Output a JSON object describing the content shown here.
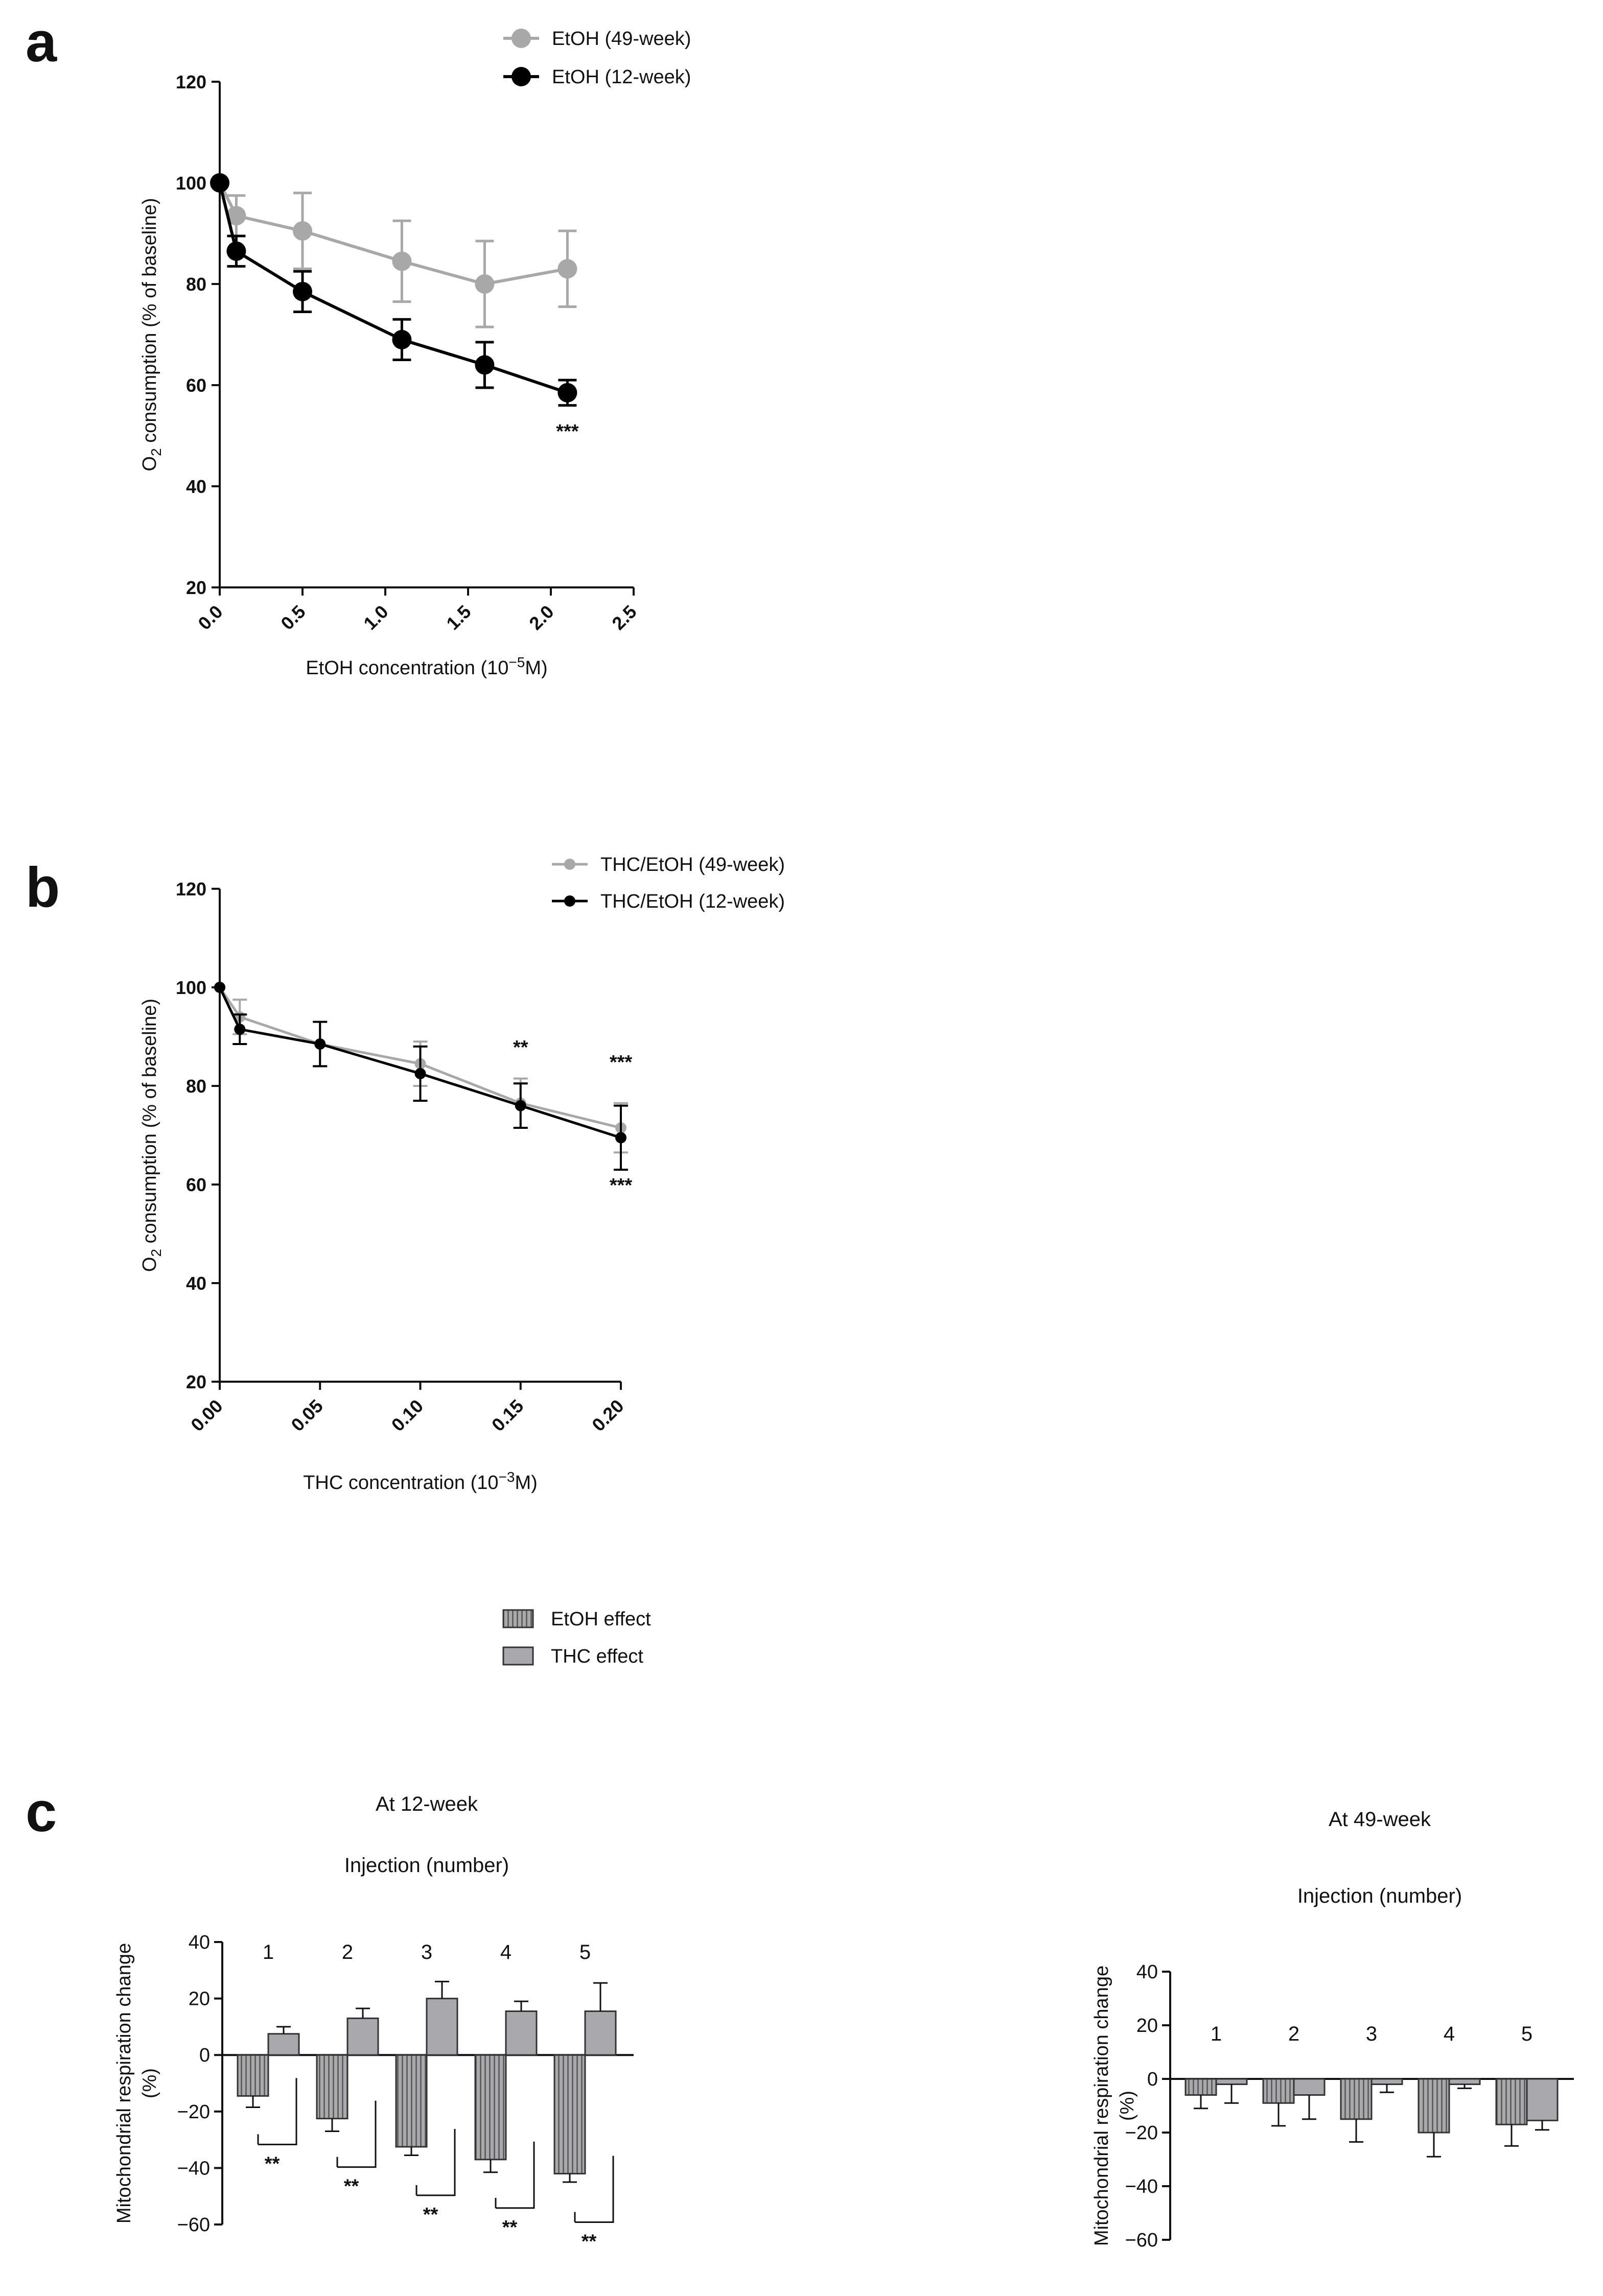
{
  "panels": {
    "a": "a",
    "b": "b",
    "c": "c"
  },
  "colors": {
    "grey": "#a8a8a8",
    "black": "#000000",
    "bar": "#a9a9ad",
    "bar_edge": "#333333"
  },
  "chart_data": [
    {
      "id": "a",
      "type": "line",
      "xlabel_prefix": "EtOH concentration (10",
      "xlabel_exp": "−5",
      "xlabel_suffix": "M)",
      "ylabel_prefix": "O",
      "ylabel_sub": "2",
      "ylabel_suffix": " consumption (% of baseline)",
      "xlim": [
        0,
        2.5
      ],
      "ylim": [
        20,
        120
      ],
      "xticks": [
        "0.0",
        "0.5",
        "1.0",
        "1.5",
        "2.0",
        "2.5"
      ],
      "xtick_values": [
        0,
        0.5,
        1.0,
        1.5,
        2.0,
        2.5
      ],
      "yticks": [
        "20",
        "40",
        "60",
        "80",
        "100",
        "120"
      ],
      "ytick_values": [
        20,
        40,
        60,
        80,
        100,
        120
      ],
      "series": [
        {
          "name": "EtOH (49-week)",
          "color": "#a8a8a8",
          "x": [
            0,
            0.1,
            0.5,
            1.1,
            1.6,
            2.1
          ],
          "y": [
            100,
            93.5,
            90.5,
            84.5,
            80,
            83
          ],
          "err": [
            0,
            4,
            7.5,
            8,
            8.5,
            7.5
          ]
        },
        {
          "name": "EtOH (12-week)",
          "color": "#000000",
          "x": [
            0,
            0.1,
            0.5,
            1.1,
            1.6,
            2.1
          ],
          "y": [
            100,
            86.5,
            78.5,
            69,
            64,
            58.5
          ],
          "err": [
            0,
            3,
            4,
            4,
            4.5,
            2.5
          ]
        }
      ],
      "annotations": [
        {
          "text": "***",
          "x": 2.1,
          "y": 51
        }
      ]
    },
    {
      "id": "b",
      "type": "line",
      "xlabel_prefix": "THC concentration (10",
      "xlabel_exp": "−3",
      "xlabel_suffix": "M)",
      "ylabel_prefix": "O",
      "ylabel_sub": "2",
      "ylabel_suffix": " consumption (% of baseline)",
      "xlim": [
        0,
        0.2
      ],
      "ylim": [
        20,
        120
      ],
      "xticks": [
        "0.00",
        "0.05",
        "0.10",
        "0.15",
        "0.20"
      ],
      "xtick_values": [
        0,
        0.05,
        0.1,
        0.15,
        0.2
      ],
      "yticks": [
        "20",
        "40",
        "60",
        "80",
        "100",
        "120"
      ],
      "ytick_values": [
        20,
        40,
        60,
        80,
        100,
        120
      ],
      "series": [
        {
          "name": "THC/EtOH (49-week)",
          "color": "#a8a8a8",
          "x": [
            0,
            0.01,
            0.05,
            0.1,
            0.15,
            0.2
          ],
          "y": [
            100,
            94,
            88.5,
            84.5,
            76.5,
            71.5
          ],
          "err": [
            0,
            3.5,
            4.5,
            4.5,
            5,
            5
          ]
        },
        {
          "name": "THC/EtOH (12-week)",
          "color": "#000000",
          "x": [
            0,
            0.01,
            0.05,
            0.1,
            0.15,
            0.2
          ],
          "y": [
            100,
            91.5,
            88.5,
            82.5,
            76,
            69.5
          ],
          "err": [
            0,
            3,
            4.5,
            5.5,
            4.5,
            6.5
          ]
        }
      ],
      "annotations": [
        {
          "text": "**",
          "x": 0.15,
          "y": 88
        },
        {
          "text": "***",
          "x": 0.2,
          "y": 85
        },
        {
          "text": "***",
          "x": 0.2,
          "y": 60
        }
      ]
    },
    {
      "id": "c-12",
      "type": "bar",
      "title": "At 12-week",
      "subtitle": "Injection (number)",
      "ylabel_line1": "Mitochondrial respiration change",
      "ylabel_line2": "(%)",
      "ylim": [
        -60,
        40
      ],
      "yticks": [
        "40",
        "20",
        "0",
        "−20",
        "−40",
        "−60"
      ],
      "ytick_values": [
        40,
        20,
        0,
        -20,
        -40,
        -60
      ],
      "categories": [
        "1",
        "2",
        "3",
        "4",
        "5"
      ],
      "series": [
        {
          "name": "EtOH effect",
          "values": [
            -14.5,
            -22.5,
            -32.5,
            -37,
            -42
          ],
          "err": [
            4,
            4.5,
            3,
            4.5,
            3
          ]
        },
        {
          "name": "THC effect",
          "values": [
            7.5,
            13,
            20,
            15.5,
            15.5
          ],
          "err": [
            2.5,
            3.5,
            6,
            3.5,
            10
          ]
        }
      ],
      "sig": [
        "**",
        "**",
        "**",
        "**",
        "**"
      ]
    },
    {
      "id": "c-49",
      "type": "bar",
      "title": "At 49-week",
      "subtitle": "Injection (number)",
      "ylabel_line1": "Mitochondrial respiration change",
      "ylabel_line2": "(%)",
      "ylim": [
        -60,
        40
      ],
      "yticks": [
        "40",
        "20",
        "0",
        "−20",
        "−40",
        "−60"
      ],
      "ytick_values": [
        40,
        20,
        0,
        -20,
        -40,
        -60
      ],
      "categories": [
        "1",
        "2",
        "3",
        "4",
        "5"
      ],
      "series": [
        {
          "name": "EtOH effect",
          "values": [
            -6,
            -9,
            -15,
            -20,
            -17
          ],
          "err": [
            5,
            8.5,
            8.5,
            9,
            8
          ]
        },
        {
          "name": "THC effect",
          "values": [
            -2,
            -6,
            -2,
            -2,
            -15.5
          ],
          "err": [
            7,
            9,
            3,
            1.5,
            3.5
          ]
        }
      ]
    }
  ],
  "legend_c": [
    "EtOH effect",
    "THC effect"
  ]
}
